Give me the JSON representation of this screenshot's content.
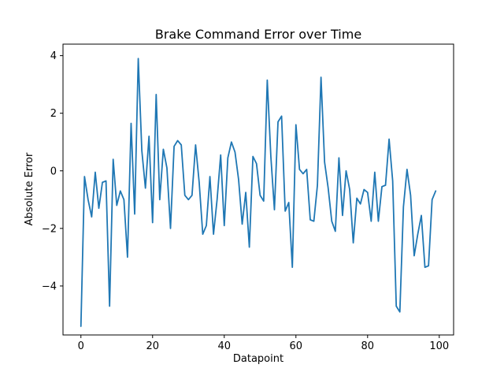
{
  "chart_data": {
    "type": "line",
    "title": "Brake Command Error over Time",
    "xlabel": "Datapoint",
    "ylabel": "Absolute Error",
    "xlim": [
      -5,
      104
    ],
    "ylim": [
      -5.7,
      4.4
    ],
    "xticks": [
      0,
      20,
      40,
      60,
      80,
      100
    ],
    "yticks": [
      -4,
      -2,
      0,
      2,
      4
    ],
    "xtick_labels": [
      "0",
      "20",
      "40",
      "60",
      "80",
      "100"
    ],
    "ytick_labels": [
      "−4",
      "−2",
      "0",
      "2",
      "4"
    ],
    "grid": false,
    "color": "#1f77b4",
    "series": [
      {
        "x": [
          0,
          1,
          2,
          3,
          4,
          5,
          6,
          7,
          8,
          9,
          10,
          11,
          12,
          13,
          14,
          15,
          16,
          17,
          18,
          19,
          20,
          21,
          22,
          23,
          24,
          25,
          26,
          27,
          28,
          29,
          30,
          31,
          32,
          33,
          34,
          35,
          36,
          37,
          38,
          39,
          40,
          41,
          42,
          43,
          44,
          45,
          46,
          47,
          48,
          49,
          50,
          51,
          52,
          53,
          54,
          55,
          56,
          57,
          58,
          59,
          60,
          61,
          62,
          63,
          64,
          65,
          66,
          67,
          68,
          69,
          70,
          71,
          72,
          73,
          74,
          75,
          76,
          77,
          78,
          79,
          80,
          81,
          82,
          83,
          84,
          85,
          86,
          87,
          88,
          89,
          90,
          91,
          92,
          93,
          94,
          95,
          96,
          97,
          98,
          99
        ],
        "values": [
          -5.4,
          -0.2,
          -1.0,
          -1.6,
          -0.05,
          -1.3,
          -0.4,
          -0.35,
          -4.7,
          0.4,
          -1.2,
          -0.7,
          -1.0,
          -3.0,
          1.65,
          -1.5,
          3.9,
          0.7,
          -0.6,
          1.2,
          -1.8,
          2.65,
          -1.0,
          0.75,
          0.1,
          -2.0,
          0.85,
          1.05,
          0.9,
          -0.85,
          -1.0,
          -0.85,
          0.9,
          -0.4,
          -2.2,
          -1.9,
          -0.2,
          -2.2,
          -1.0,
          0.55,
          -1.9,
          0.45,
          1.0,
          0.65,
          -0.3,
          -1.85,
          -0.75,
          -2.65,
          0.5,
          0.25,
          -0.85,
          -1.05,
          3.15,
          0.5,
          -1.35,
          1.7,
          1.9,
          -1.4,
          -1.1,
          -3.35,
          1.6,
          0.05,
          -0.1,
          0.05,
          -1.7,
          -1.75,
          -0.5,
          3.25,
          0.3,
          -0.6,
          -1.75,
          -2.1,
          0.45,
          -1.55,
          0.0,
          -0.65,
          -2.5,
          -0.95,
          -1.15,
          -0.65,
          -0.75,
          -1.75,
          -0.05,
          -1.75,
          -0.55,
          -0.5,
          1.1,
          -0.35,
          -4.7,
          -4.9,
          -1.25,
          0.05,
          -0.85,
          -2.95,
          -2.2,
          -1.55,
          -3.35,
          -3.3,
          -1.0,
          -0.7
        ]
      }
    ]
  }
}
